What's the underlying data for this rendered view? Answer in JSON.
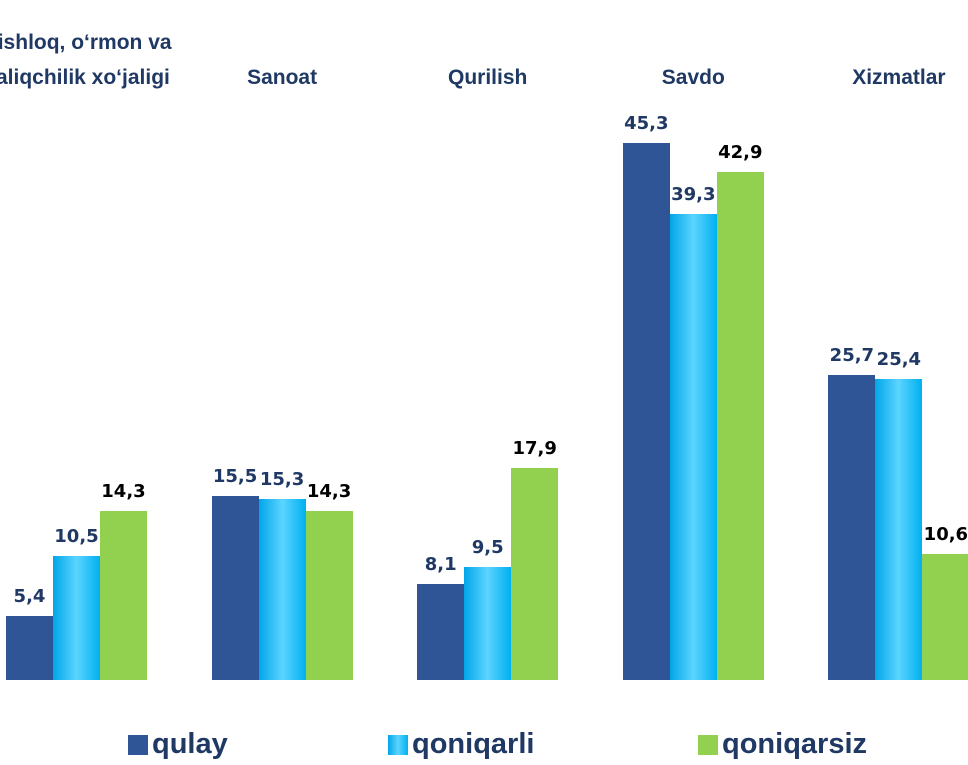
{
  "chart_data": {
    "type": "bar",
    "categories": [
      "Qishloq, o‘rmon va baliqchilik xo‘jaligi",
      "Sanoat",
      "Qurilish",
      "Savdo",
      "Xizmatlar"
    ],
    "series": [
      {
        "name": "qulay",
        "color": "#2f5597",
        "values": [
          5.4,
          15.5,
          8.1,
          45.3,
          25.7
        ],
        "value_labels": [
          "5,4",
          "15,5",
          "8,1",
          "45,3",
          "25,7"
        ]
      },
      {
        "name": "qoniqarli",
        "color": "#1fbcf5",
        "values": [
          10.5,
          15.3,
          9.5,
          39.3,
          25.4
        ],
        "value_labels": [
          "10,5",
          "15,3",
          "9,5",
          "39,3",
          "25,4"
        ]
      },
      {
        "name": "qoniqarsiz",
        "color": "#92d050",
        "values": [
          14.3,
          14.3,
          17.9,
          42.9,
          10.6
        ],
        "value_labels": [
          "14,3",
          "14,3",
          "17,9",
          "42,9",
          "10,6"
        ]
      }
    ]
  }
}
